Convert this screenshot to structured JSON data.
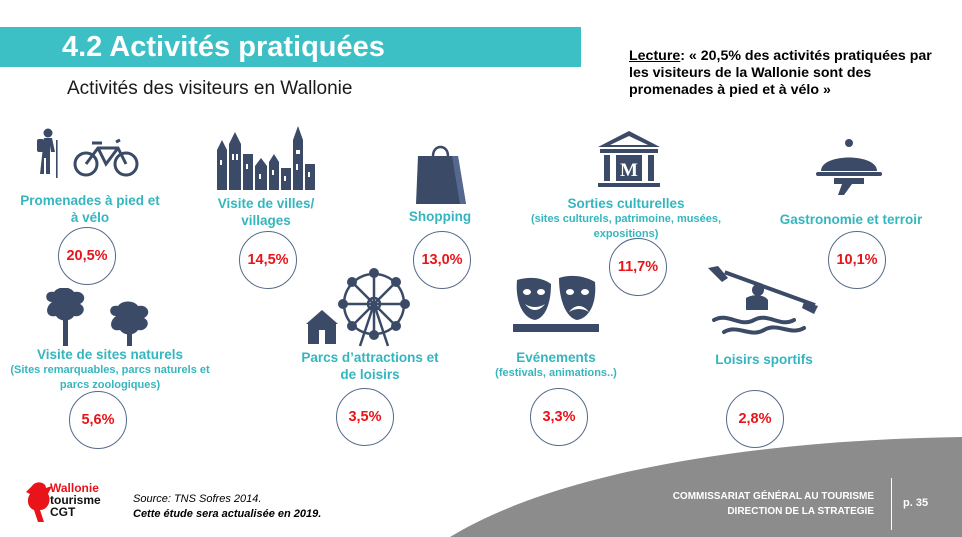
{
  "header": {
    "title": "4.2 Activités pratiquées",
    "subtitle": "Activités des visiteurs en Wallonie"
  },
  "lecture": {
    "label": "Lecture",
    "text": ": « 20,5% des activités pratiquées par les visiteurs de la Wallonie sont des promenades à pied et à vélo »"
  },
  "activities": [
    {
      "label": "Promenades à pied et à vélo",
      "sub": "",
      "value": "20,5%",
      "icon": "hiker-bike-icon"
    },
    {
      "label": "Visite de villes/ villages",
      "sub": "",
      "value": "14,5%",
      "icon": "city-icon"
    },
    {
      "label": "Shopping",
      "sub": "",
      "value": "13,0%",
      "icon": "shopping-bag-icon"
    },
    {
      "label": "Sorties culturelles",
      "sub": "(sites culturels, patrimoine, musées, expositions)",
      "value": "11,7%",
      "icon": "museum-icon"
    },
    {
      "label": "Gastronomie et terroir",
      "sub": "",
      "value": "10,1%",
      "icon": "cloche-icon"
    },
    {
      "label": "Visite de sites naturels",
      "sub": "(Sites remarquables, parcs naturels et parcs zoologiques)",
      "value": "5,6%",
      "icon": "trees-icon"
    },
    {
      "label": "Parcs d’attractions et de loisirs",
      "sub": "",
      "value": "3,5%",
      "icon": "ferris-wheel-icon"
    },
    {
      "label": "Evénements",
      "sub": "(festivals, animations..)",
      "value": "3,3%",
      "icon": "theatre-masks-icon"
    },
    {
      "label": "Loisirs sportifs",
      "sub": "",
      "value": "2,8%",
      "icon": "kayak-icon"
    }
  ],
  "source": {
    "line1": "Source: TNS Sofres 2014.",
    "line2": "Cette étude sera actualisée en 2019."
  },
  "logo": {
    "line1": "Wallonie",
    "line2": "tourisme",
    "line3": "CGT"
  },
  "footer": {
    "line1": "COMMISSARIAT GÉNÉRAL AU TOURISME",
    "line2": "DIRECTION DE LA STRATEGIE",
    "page": "p. 35"
  },
  "colors": {
    "accent": "#3dbfc6",
    "value_red": "#e8141a",
    "icon_navy": "#3b4a66",
    "footer_grey": "#8c8c8c"
  }
}
